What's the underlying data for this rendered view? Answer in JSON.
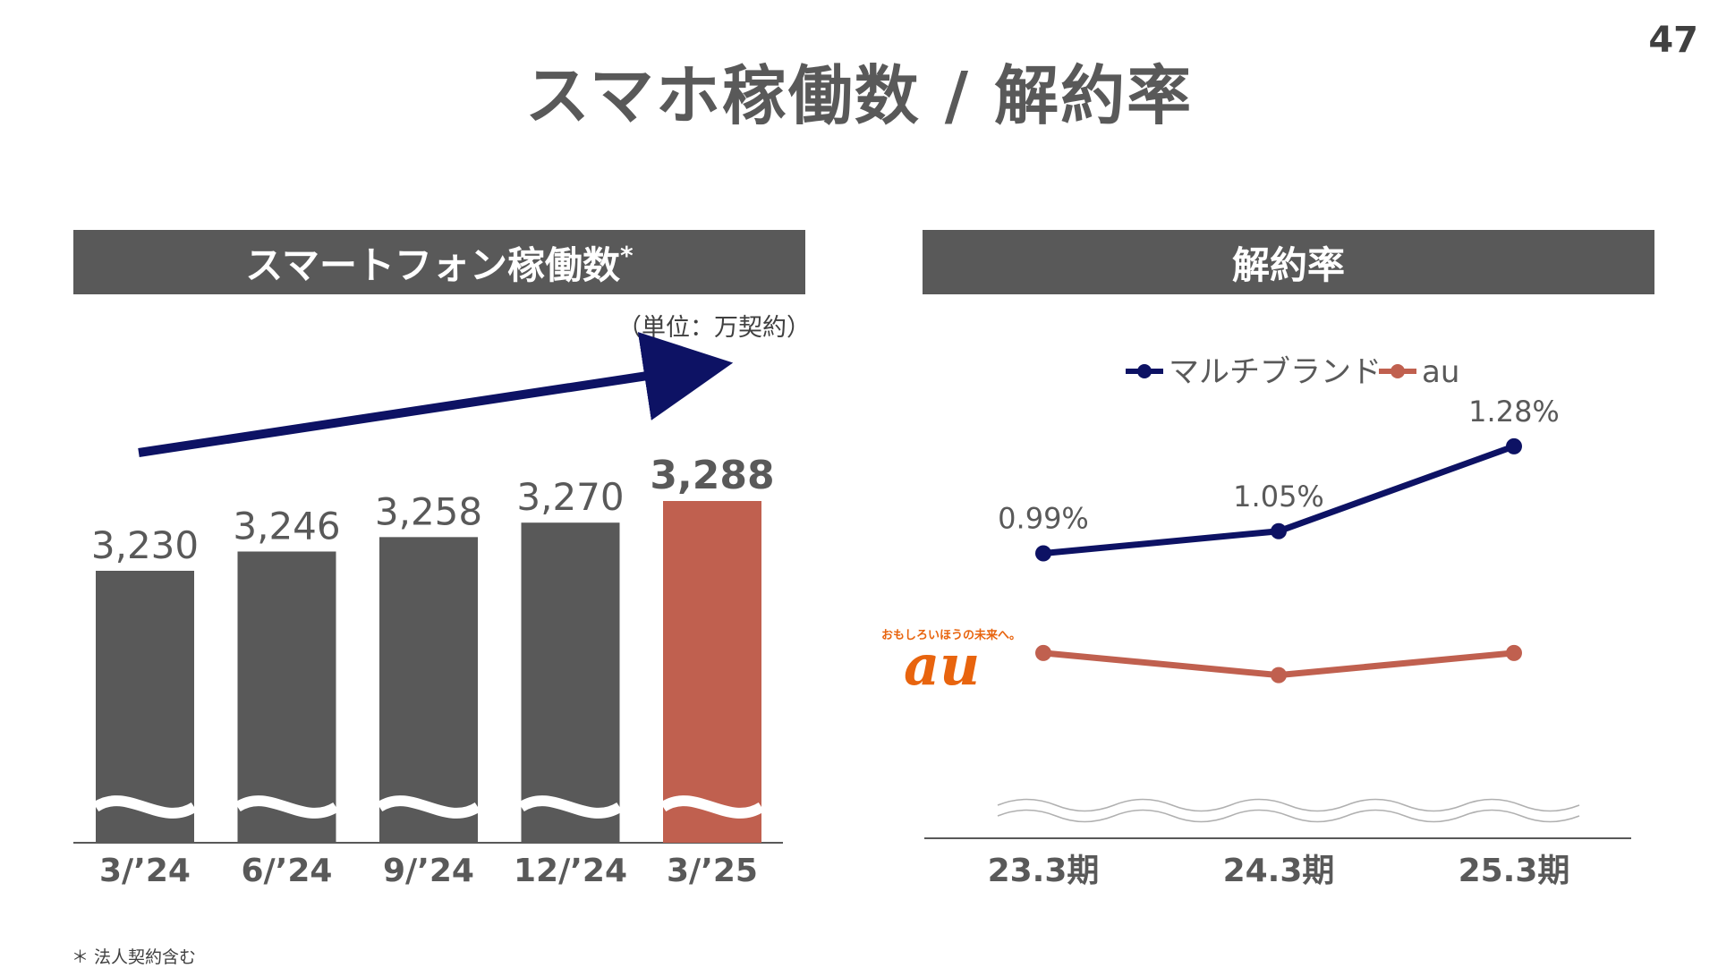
{
  "page": {
    "number": "47",
    "title": "スマホ稼働数 / 解約率",
    "footnote": "＊ 法人契約含む"
  },
  "left_panel": {
    "header": "スマートフォン稼働数",
    "header_mark": "*",
    "unit": "（単位：万契約）"
  },
  "right_panel": {
    "header": "解約率"
  },
  "logo": {
    "tagline": "おもしろいほうの未来へ。",
    "brand": "au"
  },
  "colors": {
    "dark_bar": "#595959",
    "highlight_bar": "#c0604f",
    "multibrand_line": "#0d1264",
    "au_line": "#c0604f",
    "arrow": "#0d1264"
  },
  "chart_data": [
    {
      "type": "bar",
      "title": "スマートフォン稼働数*",
      "unit": "（単位：万契約）",
      "categories": [
        "3/’24",
        "6/’24",
        "9/’24",
        "12/’24",
        "3/’25"
      ],
      "values": [
        3230,
        3246,
        3258,
        3270,
        3288
      ],
      "value_labels": [
        "3,230",
        "3,246",
        "3,258",
        "3,270",
        "3,288"
      ],
      "highlight_index": 4,
      "axis_break": true,
      "trend_arrow": "up"
    },
    {
      "type": "line",
      "title": "解約率",
      "categories": [
        "23.3期",
        "24.3期",
        "25.3期"
      ],
      "axis_break": true,
      "series": [
        {
          "name": "マルチブランド",
          "values": [
            0.99,
            1.05,
            1.28
          ],
          "labels": [
            "0.99%",
            "1.05%",
            "1.28%"
          ]
        },
        {
          "name": "au",
          "values": [
            0.72,
            0.66,
            0.72
          ],
          "labels": []
        }
      ]
    }
  ]
}
